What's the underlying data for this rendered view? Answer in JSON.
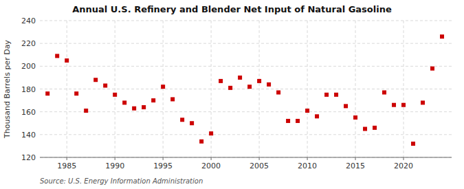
{
  "chart_data": {
    "type": "scatter",
    "title": "Annual U.S. Refinery and Blender Net Input of Natural Gasoline",
    "ylabel": "Thousand Barrels per Day",
    "annotations": [
      "Source: U.S. Energy Information Administration"
    ],
    "x": [
      1983,
      1984,
      1985,
      1986,
      1987,
      1988,
      1989,
      1990,
      1991,
      1992,
      1993,
      1994,
      1995,
      1996,
      1997,
      1998,
      1999,
      2000,
      2001,
      2002,
      2003,
      2004,
      2005,
      2006,
      2007,
      2008,
      2009,
      2010,
      2011,
      2012,
      2013,
      2014,
      2015,
      2016,
      2017,
      2018,
      2019,
      2020,
      2021,
      2022,
      2023,
      2024
    ],
    "values": [
      176,
      209,
      205,
      176,
      161,
      188,
      183,
      175,
      168,
      163,
      164,
      170,
      182,
      171,
      153,
      150,
      134,
      141,
      187,
      181,
      190,
      182,
      187,
      184,
      177,
      152,
      152,
      161,
      156,
      175,
      175,
      165,
      155,
      145,
      146,
      177,
      166,
      166,
      132,
      168,
      198,
      226
    ],
    "color": "#cc0000",
    "marker": "square",
    "xlim": [
      1982.2,
      2025
    ],
    "xticks": [
      1985,
      1990,
      1995,
      2000,
      2005,
      2010,
      2015,
      2020
    ],
    "ylim": [
      120,
      240
    ],
    "yticks": [
      120,
      140,
      160,
      180,
      200,
      220,
      240
    ],
    "grid": true
  }
}
